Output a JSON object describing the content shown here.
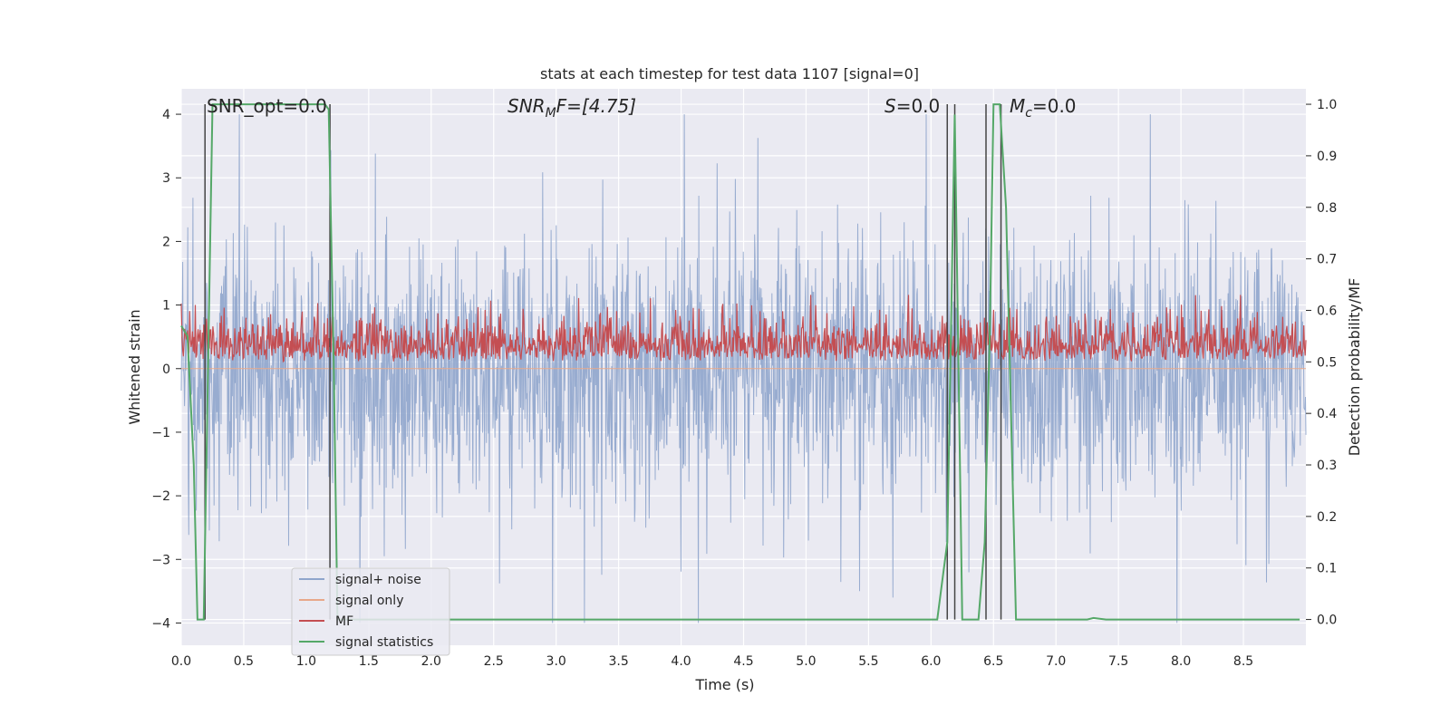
{
  "chart_data": {
    "type": "line",
    "title": "stats at each timestep for test data 1107 [signal=0]",
    "xlabel": "Time (s)",
    "ylabel_left": "Whitened strain",
    "ylabel_right": "Detection probability/MF",
    "xlim": [
      0.0,
      9.0
    ],
    "ylim_left": [
      -4.35,
      4.4
    ],
    "ylim_right": [
      -0.05,
      1.03
    ],
    "xticks": [
      "0.0",
      "0.5",
      "1.0",
      "1.5",
      "2.0",
      "2.5",
      "3.0",
      "3.5",
      "4.0",
      "4.5",
      "5.0",
      "5.5",
      "6.0",
      "6.5",
      "7.0",
      "7.5",
      "8.0",
      "8.5"
    ],
    "yticks_left": [
      "−4",
      "−3",
      "−2",
      "−1",
      "0",
      "1",
      "2",
      "3",
      "4"
    ],
    "yticks_right": [
      "0.0",
      "0.1",
      "0.2",
      "0.3",
      "0.4",
      "0.5",
      "0.6",
      "0.7",
      "0.8",
      "0.9",
      "1.0"
    ],
    "grid": true,
    "legend_position": "lower-left",
    "annotations": {
      "snr_opt": "SNR_opt=0.0",
      "snr_mf_prefix": "SNR",
      "snr_mf_sub": "M",
      "snr_mf_suffix": "F=[4.75]",
      "s_prefix": "S",
      "s_suffix": "=0.0",
      "mc_prefix": "M",
      "mc_sub": "c",
      "mc_suffix": "=0.0"
    },
    "series": [
      {
        "name": "signal+ noise",
        "color": "#8fa5cc",
        "style": "dense noise, amplitude about ±1.7 with spikes to ±4"
      },
      {
        "name": "signal only",
        "color": "#e8a88a",
        "values": "zero throughout"
      },
      {
        "name": "MF",
        "color": "#c44e52",
        "style": "dense noise between 0.5 and about 0.62 on right axis"
      },
      {
        "name": "signal statistics",
        "color": "#55a868",
        "points": [
          [
            0.0,
            0.57
          ],
          [
            0.05,
            0.55
          ],
          [
            0.1,
            0.3
          ],
          [
            0.13,
            0.0
          ],
          [
            0.18,
            0.0
          ],
          [
            0.25,
            1.0
          ],
          [
            0.3,
            1.0
          ],
          [
            1.15,
            1.0
          ],
          [
            1.18,
            0.99
          ],
          [
            1.22,
            0.5
          ],
          [
            1.25,
            0.0
          ],
          [
            6.05,
            0.0
          ],
          [
            6.13,
            0.15
          ],
          [
            6.19,
            0.98
          ],
          [
            6.25,
            0.0
          ],
          [
            6.38,
            0.0
          ],
          [
            6.43,
            0.15
          ],
          [
            6.47,
            0.55
          ],
          [
            6.5,
            1.0
          ],
          [
            6.55,
            1.0
          ],
          [
            6.6,
            0.8
          ],
          [
            6.68,
            0.0
          ],
          [
            7.25,
            0.0
          ],
          [
            7.3,
            0.003
          ],
          [
            7.4,
            0.0
          ],
          [
            8.95,
            0.0
          ]
        ]
      }
    ],
    "vlines_s": [
      0.19,
      1.19,
      6.13,
      6.19,
      6.44,
      6.56
    ]
  }
}
